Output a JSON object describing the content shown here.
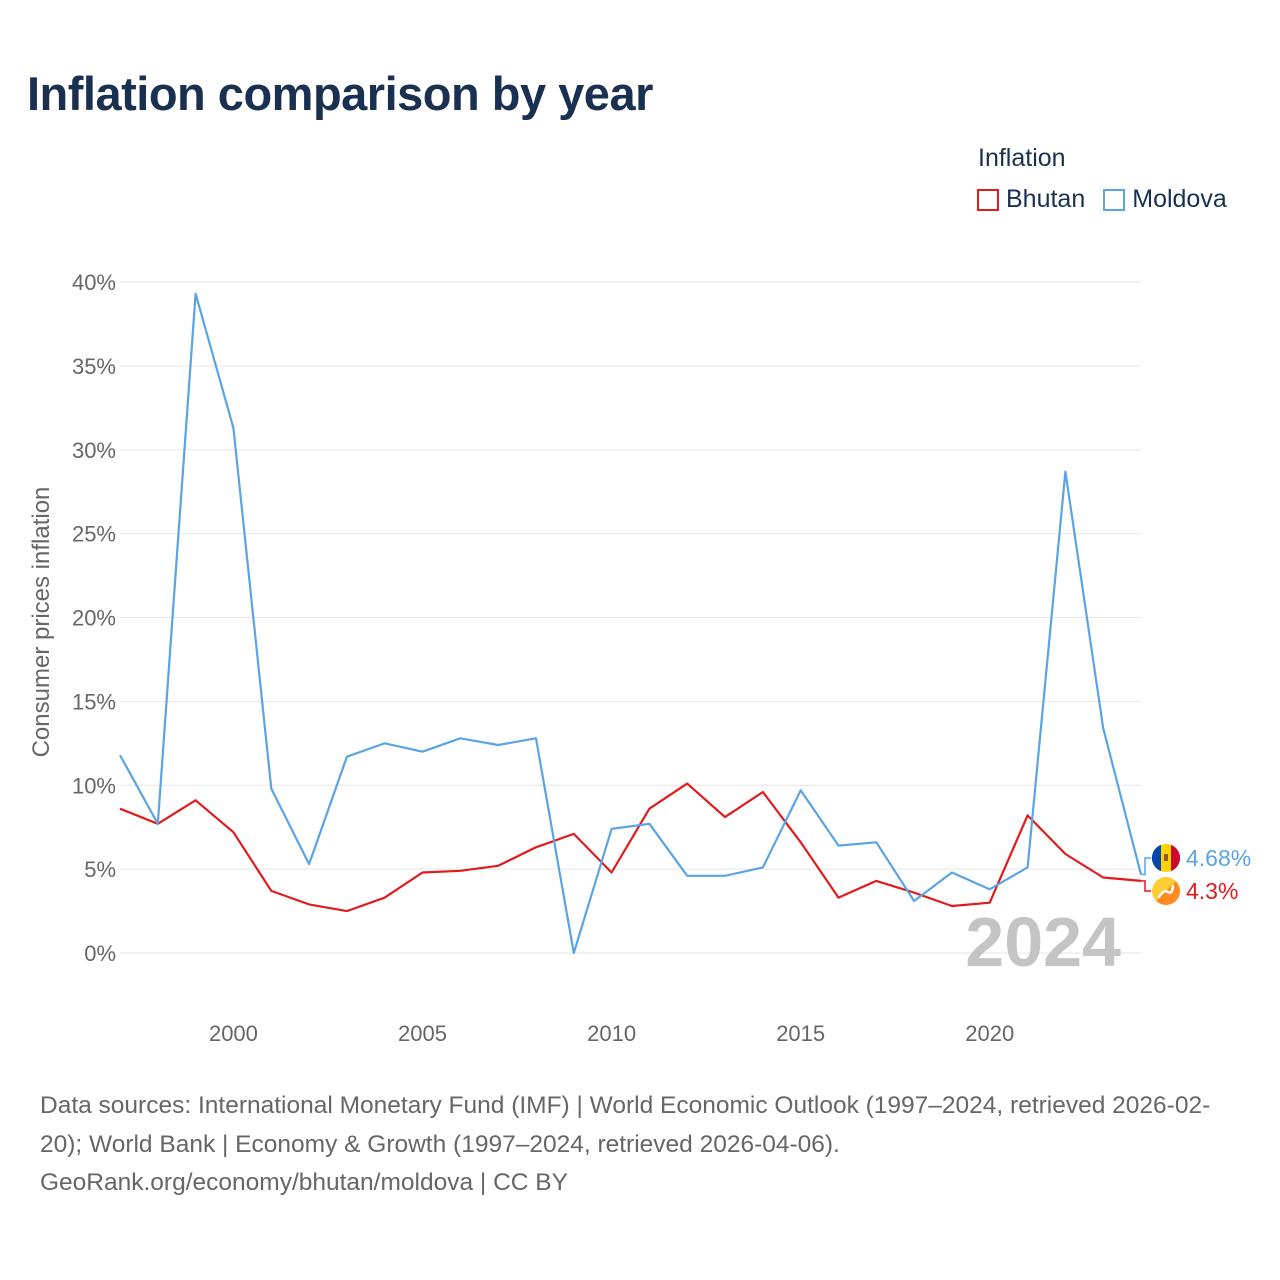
{
  "title": "Inflation comparison by year",
  "legend": {
    "title": "Inflation",
    "items": [
      {
        "label": "Bhutan",
        "color": "#e31a1c"
      },
      {
        "label": "Moldova",
        "color": "#5aa4e6"
      }
    ]
  },
  "footer": {
    "sources": "Data sources: International Monetary Fund (IMF) | World Economic Outlook (1997–2024, retrieved 2026-02-20); World Bank | Economy & Growth (1997–2024, retrieved 2026-04-06).",
    "credit": "GeoRank.org/economy/bhutan/moldova | CC BY"
  },
  "chart_data": {
    "type": "line",
    "title": "Inflation comparison by year",
    "xlabel": "",
    "ylabel": "Consumer prices inflation",
    "x": [
      1997,
      1998,
      1999,
      2000,
      2001,
      2002,
      2003,
      2004,
      2005,
      2006,
      2007,
      2008,
      2009,
      2010,
      2011,
      2012,
      2013,
      2014,
      2015,
      2016,
      2017,
      2018,
      2019,
      2020,
      2021,
      2022,
      2023,
      2024
    ],
    "xlim": [
      1997,
      2024
    ],
    "xticks": [
      2000,
      2005,
      2010,
      2015,
      2020
    ],
    "ylim": [
      0,
      40
    ],
    "yticks": [
      0,
      5,
      10,
      15,
      20,
      25,
      30,
      35,
      40
    ],
    "ytick_labels": [
      "0%",
      "5%",
      "10%",
      "15%",
      "20%",
      "25%",
      "30%",
      "35%",
      "40%"
    ],
    "grid": true,
    "watermark_year": "2024",
    "series": [
      {
        "name": "Bhutan",
        "color": "#e31a1c",
        "values": [
          8.6,
          7.7,
          9.1,
          7.2,
          3.7,
          2.9,
          2.5,
          3.3,
          4.8,
          4.9,
          5.2,
          6.3,
          7.1,
          4.8,
          8.6,
          10.1,
          8.1,
          9.6,
          6.6,
          3.3,
          4.3,
          3.6,
          2.8,
          3.0,
          8.2,
          5.9,
          4.5,
          4.3
        ],
        "end_label": "4.3%"
      },
      {
        "name": "Moldova",
        "color": "#5aa4e6",
        "values": [
          11.8,
          7.7,
          39.3,
          31.3,
          9.8,
          5.3,
          11.7,
          12.5,
          12.0,
          12.8,
          12.4,
          12.8,
          0.0,
          7.4,
          7.7,
          4.6,
          4.6,
          5.1,
          9.7,
          6.4,
          6.6,
          3.1,
          4.8,
          3.8,
          5.1,
          28.7,
          13.4,
          4.68
        ],
        "end_label": "4.68%"
      }
    ]
  }
}
